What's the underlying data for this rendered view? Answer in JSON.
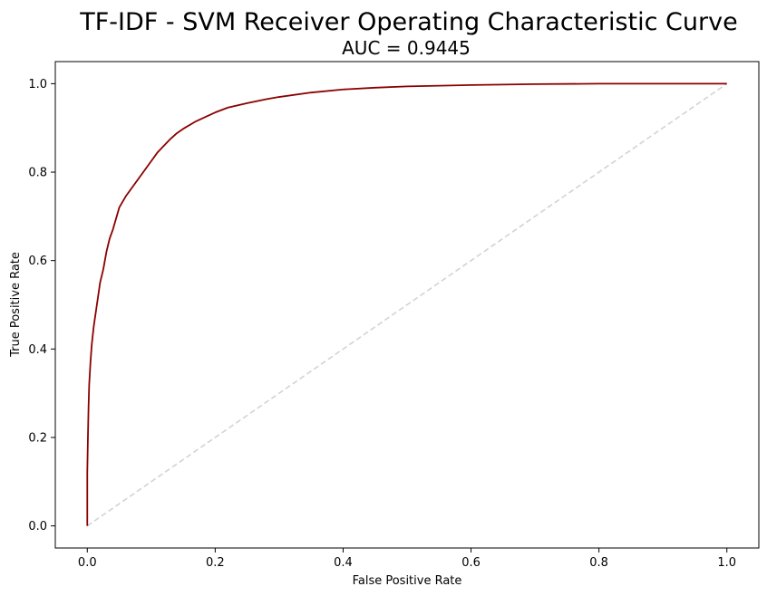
{
  "chart_data": {
    "type": "line",
    "title": "TF-IDF - SVM Receiver Operating Characteristic Curve",
    "subtitle": "AUC = 0.9445",
    "xlabel": "False Positive Rate",
    "ylabel": "True Positive Rate",
    "xlim": [
      -0.05,
      1.05
    ],
    "ylim": [
      -0.05,
      1.05
    ],
    "xticks": [
      0.0,
      0.2,
      0.4,
      0.6,
      0.8,
      1.0
    ],
    "yticks": [
      0.0,
      0.2,
      0.4,
      0.6,
      0.8,
      1.0
    ],
    "xtick_labels": [
      "0.0",
      "0.2",
      "0.4",
      "0.6",
      "0.8",
      "1.0"
    ],
    "ytick_labels": [
      "0.0",
      "0.2",
      "0.4",
      "0.6",
      "0.8",
      "1.0"
    ],
    "grid": false,
    "legend": "none",
    "series": [
      {
        "role": "roc-curve",
        "color": "#8b0000",
        "style": "solid",
        "x": [
          0.0,
          0.0,
          0.001,
          0.002,
          0.003,
          0.005,
          0.007,
          0.01,
          0.013,
          0.017,
          0.02,
          0.025,
          0.03,
          0.035,
          0.04,
          0.05,
          0.06,
          0.07,
          0.08,
          0.09,
          0.1,
          0.11,
          0.12,
          0.13,
          0.14,
          0.15,
          0.17,
          0.2,
          0.22,
          0.25,
          0.28,
          0.3,
          0.35,
          0.4,
          0.45,
          0.5,
          0.6,
          0.7,
          0.8,
          1.0
        ],
        "y": [
          0.0,
          0.12,
          0.2,
          0.27,
          0.32,
          0.37,
          0.41,
          0.45,
          0.48,
          0.52,
          0.55,
          0.58,
          0.62,
          0.65,
          0.67,
          0.72,
          0.745,
          0.765,
          0.785,
          0.805,
          0.825,
          0.845,
          0.86,
          0.875,
          0.888,
          0.898,
          0.915,
          0.935,
          0.946,
          0.956,
          0.965,
          0.97,
          0.98,
          0.987,
          0.991,
          0.994,
          0.997,
          0.999,
          1.0,
          1.0
        ]
      },
      {
        "role": "chance-line",
        "color": "#d3d3d3",
        "style": "dashed",
        "x": [
          0.0,
          1.0
        ],
        "y": [
          0.0,
          1.0
        ]
      }
    ]
  }
}
